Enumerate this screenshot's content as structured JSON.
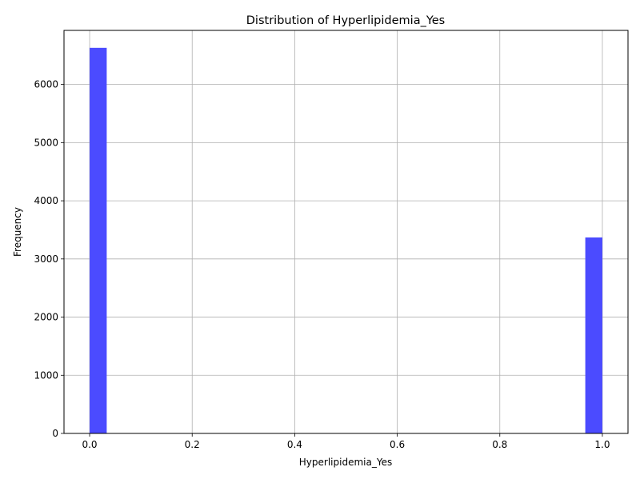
{
  "chart_data": {
    "type": "bar",
    "title": "Distribution of Hyperlipidemia_Yes",
    "xlabel": "Hyperlipidemia_Yes",
    "ylabel": "Frequency",
    "xlim": [
      -0.05,
      1.05
    ],
    "ylim": [
      0,
      6930
    ],
    "xticks": [
      0.0,
      0.2,
      0.4,
      0.6,
      0.8,
      1.0
    ],
    "xtick_labels": [
      "0.0",
      "0.2",
      "0.4",
      "0.6",
      "0.8",
      "1.0"
    ],
    "yticks": [
      0,
      1000,
      2000,
      3000,
      4000,
      5000,
      6000
    ],
    "ytick_labels": [
      "0",
      "1000",
      "2000",
      "3000",
      "4000",
      "5000",
      "6000"
    ],
    "bins": [
      {
        "x0": 0.0,
        "x1": 0.0333,
        "count": 6630
      },
      {
        "x0": 0.9667,
        "x1": 1.0,
        "count": 3370
      }
    ],
    "bar_color": "#4b4bff",
    "grid": true,
    "legend": "none"
  }
}
